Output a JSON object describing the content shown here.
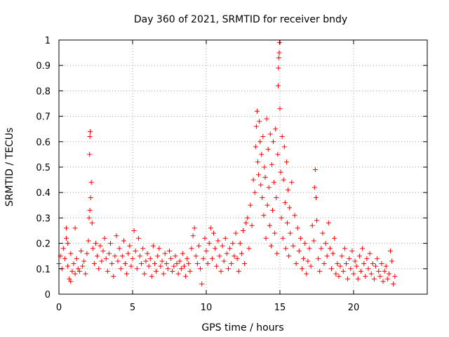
{
  "chart_data": {
    "type": "scatter",
    "title": "Day 360 of 2021, SRMTID for receiver bndy",
    "xlabel": "GPS time / hours",
    "ylabel": "SRMTID / TECUs",
    "xlim": [
      0,
      25
    ],
    "ylim": [
      0,
      1
    ],
    "xticks": [
      0,
      5,
      10,
      15,
      20
    ],
    "xtick_labels": [
      "0",
      "5",
      "10",
      "15",
      "20"
    ],
    "yticks": [
      0,
      0.1,
      0.2,
      0.3,
      0.4,
      0.5,
      0.6,
      0.7,
      0.8,
      0.9,
      1
    ],
    "ytick_labels": [
      "0",
      "0.1",
      "0.2",
      "0.3",
      "0.4",
      "0.5",
      "0.6",
      "0.7",
      "0.8",
      "0.9",
      "1"
    ],
    "grid": true,
    "marker": "+",
    "marker_color": "#ff0000",
    "series": [
      {
        "name": "SRMTID",
        "points": [
          [
            0.0,
            0.12
          ],
          [
            0.1,
            0.15
          ],
          [
            0.2,
            0.1
          ],
          [
            0.3,
            0.18
          ],
          [
            0.4,
            0.14
          ],
          [
            0.5,
            0.22
          ],
          [
            0.6,
            0.11
          ],
          [
            0.7,
            0.06
          ],
          [
            0.8,
            0.16
          ],
          [
            0.9,
            0.09
          ],
          [
            0.5,
            0.26
          ],
          [
            0.6,
            0.2
          ],
          [
            0.8,
            0.05
          ],
          [
            1.0,
            0.12
          ],
          [
            1.1,
            0.08
          ],
          [
            1.2,
            0.14
          ],
          [
            1.3,
            0.1
          ],
          [
            1.1,
            0.26
          ],
          [
            1.4,
            0.09
          ],
          [
            1.5,
            0.17
          ],
          [
            1.6,
            0.11
          ],
          [
            1.7,
            0.13
          ],
          [
            1.8,
            0.08
          ],
          [
            1.9,
            0.16
          ],
          [
            2.0,
            0.21
          ],
          [
            2.05,
            0.3
          ],
          [
            2.1,
            0.33
          ],
          [
            2.08,
            0.55
          ],
          [
            2.1,
            0.62
          ],
          [
            2.12,
            0.64
          ],
          [
            2.15,
            0.38
          ],
          [
            2.2,
            0.44
          ],
          [
            2.25,
            0.28
          ],
          [
            2.3,
            0.18
          ],
          [
            2.4,
            0.12
          ],
          [
            2.5,
            0.2
          ],
          [
            2.6,
            0.15
          ],
          [
            2.7,
            0.1
          ],
          [
            2.8,
            0.19
          ],
          [
            2.9,
            0.13
          ],
          [
            3.0,
            0.17
          ],
          [
            3.1,
            0.22
          ],
          [
            3.2,
            0.14
          ],
          [
            3.3,
            0.09
          ],
          [
            3.4,
            0.16
          ],
          [
            3.5,
            0.2
          ],
          [
            3.6,
            0.12
          ],
          [
            3.7,
            0.07
          ],
          [
            3.8,
            0.15
          ],
          [
            3.9,
            0.23
          ],
          [
            4.0,
            0.13
          ],
          [
            4.1,
            0.18
          ],
          [
            4.2,
            0.1
          ],
          [
            4.3,
            0.15
          ],
          [
            4.4,
            0.21
          ],
          [
            4.5,
            0.12
          ],
          [
            4.6,
            0.08
          ],
          [
            4.7,
            0.16
          ],
          [
            4.8,
            0.19
          ],
          [
            4.9,
            0.11
          ],
          [
            5.0,
            0.14
          ],
          [
            5.1,
            0.25
          ],
          [
            5.2,
            0.17
          ],
          [
            5.3,
            0.1
          ],
          [
            5.4,
            0.22
          ],
          [
            5.5,
            0.15
          ],
          [
            5.6,
            0.12
          ],
          [
            5.7,
            0.18
          ],
          [
            5.8,
            0.08
          ],
          [
            5.9,
            0.13
          ],
          [
            6.0,
            0.16
          ],
          [
            6.1,
            0.11
          ],
          [
            6.2,
            0.14
          ],
          [
            6.3,
            0.07
          ],
          [
            6.4,
            0.19
          ],
          [
            6.5,
            0.12
          ],
          [
            6.6,
            0.09
          ],
          [
            6.7,
            0.15
          ],
          [
            6.8,
            0.18
          ],
          [
            6.9,
            0.11
          ],
          [
            7.0,
            0.13
          ],
          [
            7.1,
            0.08
          ],
          [
            7.2,
            0.16
          ],
          [
            7.3,
            0.12
          ],
          [
            7.4,
            0.1
          ],
          [
            7.5,
            0.17
          ],
          [
            7.6,
            0.14
          ],
          [
            7.7,
            0.09
          ],
          [
            7.8,
            0.11
          ],
          [
            7.9,
            0.15
          ],
          [
            8.0,
            0.12
          ],
          [
            8.1,
            0.08
          ],
          [
            8.2,
            0.13
          ],
          [
            8.3,
            0.1
          ],
          [
            8.4,
            0.16
          ],
          [
            8.5,
            0.11
          ],
          [
            8.6,
            0.07
          ],
          [
            8.7,
            0.14
          ],
          [
            8.8,
            0.12
          ],
          [
            8.9,
            0.09
          ],
          [
            9.0,
            0.18
          ],
          [
            9.1,
            0.23
          ],
          [
            9.2,
            0.26
          ],
          [
            9.3,
            0.15
          ],
          [
            9.4,
            0.12
          ],
          [
            9.5,
            0.19
          ],
          [
            9.6,
            0.1
          ],
          [
            9.7,
            0.04
          ],
          [
            9.8,
            0.14
          ],
          [
            9.9,
            0.22
          ],
          [
            10.0,
            0.17
          ],
          [
            10.1,
            0.12
          ],
          [
            10.2,
            0.2
          ],
          [
            10.3,
            0.26
          ],
          [
            10.4,
            0.14
          ],
          [
            10.5,
            0.24
          ],
          [
            10.6,
            0.18
          ],
          [
            10.7,
            0.11
          ],
          [
            10.8,
            0.21
          ],
          [
            10.9,
            0.15
          ],
          [
            11.0,
            0.09
          ],
          [
            11.1,
            0.19
          ],
          [
            11.2,
            0.13
          ],
          [
            11.3,
            0.22
          ],
          [
            11.4,
            0.16
          ],
          [
            11.5,
            0.1
          ],
          [
            11.6,
            0.18
          ],
          [
            11.7,
            0.12
          ],
          [
            11.8,
            0.2
          ],
          [
            11.9,
            0.15
          ],
          [
            12.0,
            0.24
          ],
          [
            12.1,
            0.14
          ],
          [
            12.2,
            0.09
          ],
          [
            12.3,
            0.2
          ],
          [
            12.4,
            0.16
          ],
          [
            12.5,
            0.25
          ],
          [
            12.6,
            0.12
          ],
          [
            12.7,
            0.28
          ],
          [
            12.8,
            0.3
          ],
          [
            12.9,
            0.18
          ],
          [
            13.0,
            0.35
          ],
          [
            13.1,
            0.27
          ],
          [
            13.2,
            0.45
          ],
          [
            13.3,
            0.4
          ],
          [
            13.35,
            0.58
          ],
          [
            13.4,
            0.66
          ],
          [
            13.45,
            0.72
          ],
          [
            13.5,
            0.52
          ],
          [
            13.55,
            0.47
          ],
          [
            13.6,
            0.68
          ],
          [
            13.65,
            0.6
          ],
          [
            13.7,
            0.43
          ],
          [
            13.75,
            0.55
          ],
          [
            13.8,
            0.38
          ],
          [
            13.85,
            0.62
          ],
          [
            13.9,
            0.31
          ],
          [
            13.95,
            0.5
          ],
          [
            14.0,
            0.46
          ],
          [
            14.05,
            0.22
          ],
          [
            14.1,
            0.69
          ],
          [
            14.15,
            0.35
          ],
          [
            14.2,
            0.57
          ],
          [
            14.25,
            0.42
          ],
          [
            14.3,
            0.27
          ],
          [
            14.35,
            0.63
          ],
          [
            14.4,
            0.19
          ],
          [
            14.45,
            0.51
          ],
          [
            14.5,
            0.33
          ],
          [
            14.55,
            0.6
          ],
          [
            14.6,
            0.44
          ],
          [
            14.65,
            0.24
          ],
          [
            14.7,
            0.65
          ],
          [
            14.75,
            0.38
          ],
          [
            14.8,
            0.16
          ],
          [
            14.85,
            0.55
          ],
          [
            14.88,
            0.82
          ],
          [
            14.9,
            0.89
          ],
          [
            14.92,
            0.93
          ],
          [
            14.95,
            0.95
          ],
          [
            14.97,
            0.99
          ],
          [
            15.0,
            0.73
          ],
          [
            15.05,
            0.48
          ],
          [
            15.1,
            0.3
          ],
          [
            15.15,
            0.62
          ],
          [
            15.2,
            0.22
          ],
          [
            15.25,
            0.45
          ],
          [
            15.3,
            0.58
          ],
          [
            15.35,
            0.36
          ],
          [
            15.4,
            0.18
          ],
          [
            15.45,
            0.52
          ],
          [
            15.5,
            0.28
          ],
          [
            15.55,
            0.41
          ],
          [
            15.6,
            0.15
          ],
          [
            15.65,
            0.34
          ],
          [
            15.7,
            0.24
          ],
          [
            15.8,
            0.44
          ],
          [
            15.9,
            0.19
          ],
          [
            16.0,
            0.31
          ],
          [
            16.1,
            0.12
          ],
          [
            16.2,
            0.26
          ],
          [
            16.3,
            0.17
          ],
          [
            16.4,
            0.22
          ],
          [
            16.5,
            0.1
          ],
          [
            16.6,
            0.14
          ],
          [
            16.7,
            0.2
          ],
          [
            16.8,
            0.08
          ],
          [
            16.9,
            0.13
          ],
          [
            17.0,
            0.18
          ],
          [
            17.1,
            0.11
          ],
          [
            17.2,
            0.27
          ],
          [
            17.3,
            0.21
          ],
          [
            17.35,
            0.42
          ],
          [
            17.4,
            0.49
          ],
          [
            17.45,
            0.38
          ],
          [
            17.5,
            0.29
          ],
          [
            17.6,
            0.14
          ],
          [
            17.7,
            0.09
          ],
          [
            17.8,
            0.18
          ],
          [
            17.9,
            0.24
          ],
          [
            18.0,
            0.12
          ],
          [
            18.1,
            0.2
          ],
          [
            18.2,
            0.15
          ],
          [
            18.3,
            0.28
          ],
          [
            18.4,
            0.18
          ],
          [
            18.5,
            0.1
          ],
          [
            18.6,
            0.16
          ],
          [
            18.7,
            0.22
          ],
          [
            18.8,
            0.08
          ],
          [
            18.9,
            0.12
          ],
          [
            19.0,
            0.07
          ],
          [
            19.1,
            0.11
          ],
          [
            19.2,
            0.15
          ],
          [
            19.3,
            0.09
          ],
          [
            19.4,
            0.18
          ],
          [
            19.5,
            0.12
          ],
          [
            19.6,
            0.06
          ],
          [
            19.7,
            0.14
          ],
          [
            19.8,
            0.1
          ],
          [
            19.9,
            0.17
          ],
          [
            20.0,
            0.08
          ],
          [
            20.1,
            0.13
          ],
          [
            20.2,
            0.11
          ],
          [
            20.3,
            0.06
          ],
          [
            20.4,
            0.15
          ],
          [
            20.5,
            0.09
          ],
          [
            20.6,
            0.18
          ],
          [
            20.7,
            0.12
          ],
          [
            20.8,
            0.07
          ],
          [
            20.9,
            0.14
          ],
          [
            21.0,
            0.1
          ],
          [
            21.1,
            0.16
          ],
          [
            21.2,
            0.08
          ],
          [
            21.3,
            0.12
          ],
          [
            21.4,
            0.06
          ],
          [
            21.5,
            0.11
          ],
          [
            21.6,
            0.14
          ],
          [
            21.7,
            0.09
          ],
          [
            21.8,
            0.07
          ],
          [
            21.9,
            0.12
          ],
          [
            22.0,
            0.05
          ],
          [
            22.1,
            0.09
          ],
          [
            22.2,
            0.11
          ],
          [
            22.3,
            0.06
          ],
          [
            22.4,
            0.08
          ],
          [
            22.5,
            0.17
          ],
          [
            22.6,
            0.13
          ],
          [
            22.7,
            0.04
          ],
          [
            22.8,
            0.07
          ]
        ]
      }
    ]
  }
}
